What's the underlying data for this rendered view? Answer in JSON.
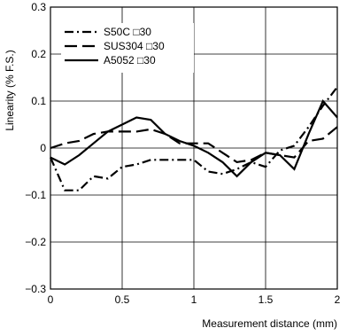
{
  "chart_data": {
    "type": "line",
    "xlabel": "Measurement distance (mm)",
    "ylabel": "Linearity (% F.S.)",
    "xlim": [
      0,
      2
    ],
    "ylim": [
      -0.3,
      0.3
    ],
    "x_ticks": [
      {
        "value": 0,
        "label": "0"
      },
      {
        "value": 0.5,
        "label": "0.5"
      },
      {
        "value": 1,
        "label": "1"
      },
      {
        "value": 1.5,
        "label": "1.5"
      },
      {
        "value": 2,
        "label": "2"
      }
    ],
    "y_ticks": [
      {
        "value": 0.3,
        "label": "0.3"
      },
      {
        "value": 0.2,
        "label": "0.2"
      },
      {
        "value": 0.1,
        "label": "0.1"
      },
      {
        "value": 0,
        "label": "0"
      },
      {
        "value": -0.1,
        "label": "−0.1"
      },
      {
        "value": -0.2,
        "label": "−0.2"
      },
      {
        "value": -0.3,
        "label": "−0.3"
      }
    ],
    "grid": true,
    "legend_position": "top-left",
    "series": [
      {
        "name": "S50C □30",
        "style": "dash-dot",
        "color": "#000000",
        "x": [
          0,
          0.1,
          0.2,
          0.3,
          0.4,
          0.5,
          0.6,
          0.7,
          0.8,
          0.9,
          1.0,
          1.1,
          1.2,
          1.3,
          1.4,
          1.5,
          1.6,
          1.7,
          1.8,
          1.9,
          2.0
        ],
        "y": [
          -0.02,
          -0.09,
          -0.09,
          -0.06,
          -0.065,
          -0.04,
          -0.035,
          -0.025,
          -0.025,
          -0.025,
          -0.025,
          -0.05,
          -0.055,
          -0.045,
          -0.03,
          -0.04,
          -0.005,
          0.005,
          0.045,
          0.09,
          0.13
        ]
      },
      {
        "name": "SUS304 □30",
        "style": "dashed",
        "color": "#000000",
        "x": [
          0,
          0.1,
          0.2,
          0.3,
          0.4,
          0.5,
          0.6,
          0.7,
          0.8,
          0.9,
          1.0,
          1.1,
          1.2,
          1.3,
          1.4,
          1.5,
          1.6,
          1.7,
          1.8,
          1.9,
          2.0
        ],
        "y": [
          0,
          0.01,
          0.015,
          0.03,
          0.035,
          0.035,
          0.035,
          0.04,
          0.03,
          0.01,
          0.01,
          0.01,
          -0.01,
          -0.03,
          -0.025,
          -0.01,
          -0.015,
          -0.02,
          0.015,
          0.02,
          0.045
        ]
      },
      {
        "name": "A5052 □30",
        "style": "solid",
        "color": "#000000",
        "x": [
          0,
          0.1,
          0.2,
          0.3,
          0.4,
          0.5,
          0.6,
          0.7,
          0.8,
          0.9,
          1.0,
          1.1,
          1.2,
          1.3,
          1.4,
          1.5,
          1.6,
          1.7,
          1.8,
          1.9,
          2.0
        ],
        "y": [
          -0.02,
          -0.035,
          -0.015,
          0.01,
          0.035,
          0.05,
          0.065,
          0.06,
          0.03,
          0.015,
          0.005,
          -0.01,
          -0.03,
          -0.06,
          -0.03,
          -0.01,
          -0.015,
          -0.045,
          0.03,
          0.1,
          0.065
        ]
      }
    ]
  }
}
